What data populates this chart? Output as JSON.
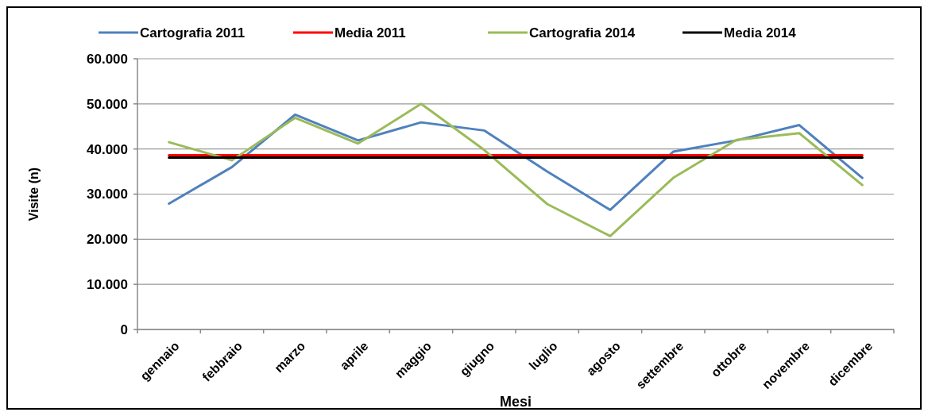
{
  "chart_data": {
    "type": "line",
    "xlabel": "Mesi",
    "ylabel": "Visite (n)",
    "categories": [
      "gennaio",
      "febbraio",
      "marzo",
      "aprile",
      "maggio",
      "giugno",
      "luglio",
      "agosto",
      "settembre",
      "ottobre",
      "novembre",
      "dicembre"
    ],
    "series": [
      {
        "name": "Cartografia 2011",
        "color": "#4f81bd",
        "values": [
          27900,
          36000,
          47600,
          41900,
          45900,
          44100,
          35000,
          26500,
          39400,
          41900,
          45300,
          33600
        ]
      },
      {
        "name": "Media 2011",
        "color": "#ff0000",
        "values": [
          38600,
          38600,
          38600,
          38600,
          38600,
          38600,
          38600,
          38600,
          38600,
          38600,
          38600,
          38600
        ]
      },
      {
        "name": "Cartografia 2014",
        "color": "#9bbb59",
        "values": [
          41500,
          37500,
          46900,
          41200,
          50000,
          39800,
          27800,
          20700,
          33600,
          42000,
          43500,
          32000
        ]
      },
      {
        "name": "Media 2014",
        "color": "#000000",
        "values": [
          38100,
          38100,
          38100,
          38100,
          38100,
          38100,
          38100,
          38100,
          38100,
          38100,
          38100,
          38100
        ]
      }
    ],
    "ylim": [
      0,
      60000
    ],
    "yticks": [
      0,
      {
        "value": 10000,
        "label": "10.000"
      },
      {
        "value": 20000,
        "label": "20.000"
      },
      {
        "value": 30000,
        "label": "30.000"
      },
      {
        "value": 40000,
        "label": "40.000"
      },
      {
        "value": 50000,
        "label": "50.000"
      },
      {
        "value": 60000,
        "label": "60.000"
      }
    ],
    "grid": "y",
    "legend": "top",
    "marker": "none",
    "line_style": "solid"
  }
}
